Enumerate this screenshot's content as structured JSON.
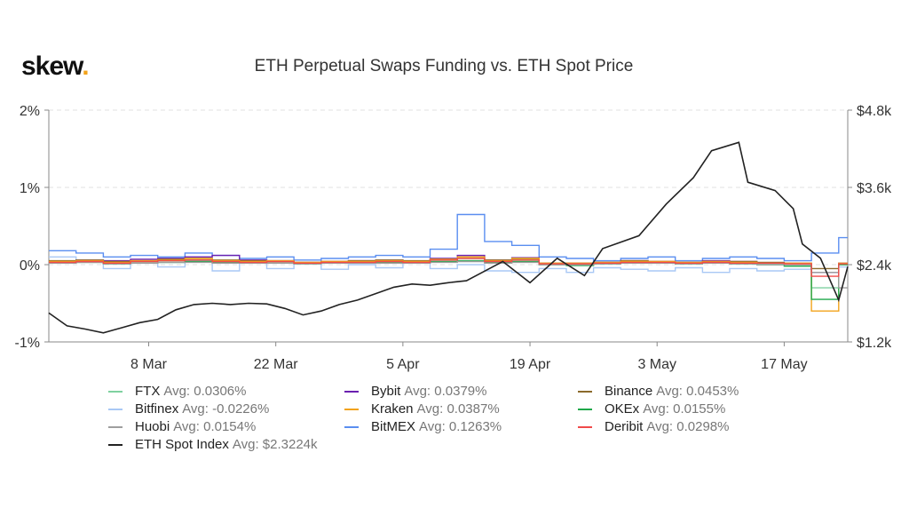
{
  "logo": "skew",
  "chart_data": {
    "type": "line",
    "title": "ETH Perpetual Swaps Funding vs. ETH Spot Price",
    "y_left": {
      "ticks": [
        "2%",
        "1%",
        "0%",
        "-1%"
      ],
      "values": [
        2,
        1,
        0,
        -1
      ],
      "range": [
        -1,
        2
      ]
    },
    "y_right": {
      "ticks": [
        "$4.8k",
        "$3.6k",
        "$2.4k",
        "$1.2k"
      ],
      "values": [
        4.8,
        3.6,
        2.4,
        1.2
      ],
      "range": [
        1.2,
        4.8
      ]
    },
    "x_ticks": [
      {
        "label": "8 Mar",
        "date": "2021-03-08"
      },
      {
        "label": "22 Mar",
        "date": "2021-03-22"
      },
      {
        "label": "5 Apr",
        "date": "2021-04-05"
      },
      {
        "label": "19 Apr",
        "date": "2021-04-19"
      },
      {
        "label": "3 May",
        "date": "2021-05-03"
      },
      {
        "label": "17 May",
        "date": "2021-05-17"
      }
    ],
    "x_range": [
      "2021-02-25",
      "2021-05-24"
    ],
    "grid": "horizontal dashed",
    "legend_placement": "bottom",
    "funding_dates": [
      "2021-02-25",
      "2021-02-28",
      "2021-03-03",
      "2021-03-06",
      "2021-03-09",
      "2021-03-12",
      "2021-03-15",
      "2021-03-18",
      "2021-03-21",
      "2021-03-24",
      "2021-03-27",
      "2021-03-30",
      "2021-04-02",
      "2021-04-05",
      "2021-04-08",
      "2021-04-11",
      "2021-04-14",
      "2021-04-17",
      "2021-04-20",
      "2021-04-23",
      "2021-04-26",
      "2021-04-29",
      "2021-05-02",
      "2021-05-05",
      "2021-05-08",
      "2021-05-11",
      "2021-05-14",
      "2021-05-17",
      "2021-05-20",
      "2021-05-23"
    ],
    "series": [
      {
        "name": "FTX",
        "avg": "Avg: 0.0306%",
        "color": "#7fd1a0",
        "axis": "left",
        "values": [
          0.03,
          0.05,
          0.02,
          0.04,
          0.03,
          0.06,
          0.04,
          0.03,
          0.05,
          0.02,
          0.03,
          0.04,
          0.05,
          0.03,
          0.06,
          0.08,
          0.05,
          0.07,
          0.02,
          0.01,
          0.03,
          0.04,
          0.03,
          0.02,
          0.04,
          0.03,
          0.02,
          0.01,
          -0.3,
          0.02
        ]
      },
      {
        "name": "Bybit",
        "avg": "Avg: 0.0379%",
        "color": "#6a1fb0",
        "axis": "left",
        "values": [
          0.04,
          0.06,
          0.05,
          0.07,
          0.08,
          0.1,
          0.12,
          0.06,
          0.05,
          0.03,
          0.04,
          0.05,
          0.06,
          0.04,
          0.08,
          0.12,
          0.06,
          0.09,
          0.01,
          0.02,
          0.03,
          0.05,
          0.04,
          0.03,
          0.05,
          0.04,
          0.02,
          0.01,
          -0.1,
          0.02
        ]
      },
      {
        "name": "Binance",
        "avg": "Avg: 0.0453%",
        "color": "#8b6a2b",
        "axis": "left",
        "values": [
          0.05,
          0.06,
          0.04,
          0.05,
          0.07,
          0.08,
          0.06,
          0.05,
          0.04,
          0.03,
          0.04,
          0.05,
          0.06,
          0.05,
          0.07,
          0.1,
          0.06,
          0.08,
          0.02,
          0.02,
          0.03,
          0.05,
          0.04,
          0.03,
          0.04,
          0.04,
          0.03,
          0.02,
          -0.05,
          0.01
        ]
      },
      {
        "name": "Bitfinex",
        "avg": "Avg: -0.0226%",
        "color": "#a9c8f5",
        "axis": "left",
        "values": [
          0.1,
          0.05,
          -0.05,
          0.02,
          -0.03,
          0.05,
          -0.08,
          0.03,
          -0.05,
          0.02,
          -0.06,
          0.0,
          -0.04,
          0.03,
          -0.05,
          0.0,
          -0.08,
          -0.1,
          -0.05,
          -0.1,
          -0.04,
          -0.06,
          -0.08,
          -0.04,
          -0.1,
          -0.05,
          -0.08,
          -0.06,
          -0.1,
          -0.03
        ]
      },
      {
        "name": "Kraken",
        "avg": "Avg: 0.0387%",
        "color": "#f2a31b",
        "axis": "left",
        "values": [
          0.04,
          0.05,
          0.03,
          0.05,
          0.06,
          0.08,
          0.05,
          0.04,
          0.05,
          0.03,
          0.04,
          0.04,
          0.05,
          0.04,
          0.07,
          0.1,
          0.05,
          0.08,
          0.02,
          0.02,
          0.03,
          0.04,
          0.04,
          0.03,
          0.04,
          0.03,
          0.02,
          0.02,
          -0.6,
          0.02
        ]
      },
      {
        "name": "OKEx",
        "avg": "Avg: 0.0155%",
        "color": "#1fa84a",
        "axis": "left",
        "values": [
          0.02,
          0.03,
          0.01,
          0.02,
          0.03,
          0.04,
          0.03,
          0.02,
          0.02,
          0.01,
          0.02,
          0.02,
          0.03,
          0.02,
          0.04,
          0.05,
          0.03,
          0.04,
          0.0,
          -0.01,
          0.01,
          0.02,
          0.02,
          0.01,
          0.02,
          0.01,
          0.0,
          -0.02,
          -0.45,
          0.0
        ]
      },
      {
        "name": "Huobi",
        "avg": "Avg: 0.0154%",
        "color": "#9e9e9e",
        "axis": "left",
        "values": [
          0.02,
          0.03,
          0.01,
          0.02,
          0.03,
          0.03,
          0.02,
          0.02,
          0.02,
          0.01,
          0.02,
          0.02,
          0.02,
          0.02,
          0.03,
          0.04,
          0.02,
          0.03,
          0.0,
          0.0,
          0.01,
          0.02,
          0.02,
          0.01,
          0.02,
          0.01,
          0.0,
          0.0,
          -0.1,
          -0.3
        ]
      },
      {
        "name": "BitMEX",
        "avg": "Avg: 0.1263%",
        "color": "#5a8ef0",
        "axis": "left",
        "values": [
          0.18,
          0.15,
          0.1,
          0.12,
          0.1,
          0.15,
          0.12,
          0.08,
          0.1,
          0.06,
          0.08,
          0.1,
          0.12,
          0.1,
          0.2,
          0.65,
          0.3,
          0.25,
          0.1,
          0.08,
          0.05,
          0.08,
          0.1,
          0.05,
          0.08,
          0.1,
          0.08,
          0.05,
          0.15,
          0.35
        ]
      },
      {
        "name": "Deribit",
        "avg": "Avg: 0.0298%",
        "color": "#f04a4a",
        "axis": "left",
        "values": [
          0.03,
          0.04,
          0.02,
          0.04,
          0.05,
          0.06,
          0.04,
          0.03,
          0.04,
          0.02,
          0.03,
          0.03,
          0.04,
          0.03,
          0.06,
          0.08,
          0.04,
          0.06,
          0.01,
          0.01,
          0.02,
          0.03,
          0.03,
          0.02,
          0.03,
          0.02,
          0.02,
          0.01,
          -0.15,
          0.01
        ]
      },
      {
        "name": "ETH Spot Index",
        "avg": "Avg: $2.3224k",
        "color": "#222222",
        "axis": "right",
        "dates": [
          "2021-02-25",
          "2021-02-27",
          "2021-03-01",
          "2021-03-03",
          "2021-03-05",
          "2021-03-07",
          "2021-03-09",
          "2021-03-11",
          "2021-03-13",
          "2021-03-15",
          "2021-03-17",
          "2021-03-19",
          "2021-03-21",
          "2021-03-23",
          "2021-03-25",
          "2021-03-27",
          "2021-03-29",
          "2021-03-31",
          "2021-04-02",
          "2021-04-04",
          "2021-04-06",
          "2021-04-08",
          "2021-04-10",
          "2021-04-12",
          "2021-04-14",
          "2021-04-16",
          "2021-04-19",
          "2021-04-22",
          "2021-04-25",
          "2021-04-27",
          "2021-05-01",
          "2021-05-04",
          "2021-05-07",
          "2021-05-09",
          "2021-05-12",
          "2021-05-13",
          "2021-05-16",
          "2021-05-18",
          "2021-05-19",
          "2021-05-21",
          "2021-05-23",
          "2021-05-24"
        ],
        "values": [
          1.65,
          1.45,
          1.4,
          1.34,
          1.42,
          1.5,
          1.55,
          1.7,
          1.78,
          1.8,
          1.78,
          1.8,
          1.79,
          1.72,
          1.62,
          1.68,
          1.78,
          1.85,
          1.95,
          2.05,
          2.1,
          2.08,
          2.12,
          2.15,
          2.3,
          2.45,
          2.12,
          2.5,
          2.23,
          2.65,
          2.85,
          3.34,
          3.75,
          4.17,
          4.3,
          3.68,
          3.55,
          3.27,
          2.72,
          2.5,
          1.85,
          2.37
        ]
      }
    ]
  }
}
